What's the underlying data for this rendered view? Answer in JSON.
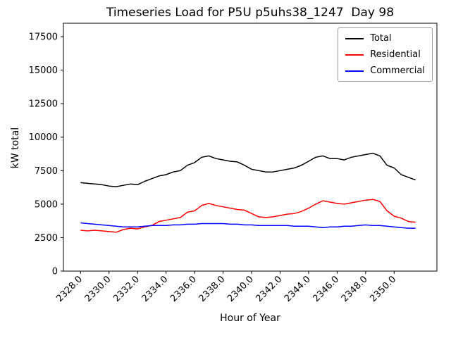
{
  "chart_data": {
    "type": "line",
    "title": "Timeseries Load for P5U p5uhs38_1247  Day 98",
    "xlabel": "Hour of Year",
    "ylabel": "kW total",
    "xlim": [
      2326.8,
      2353.0
    ],
    "ylim": [
      0,
      18500
    ],
    "grid": false,
    "legend_position": "upper right",
    "xticks": [
      2328,
      2330,
      2332,
      2334,
      2336,
      2338,
      2340,
      2342,
      2344,
      2346,
      2348,
      2350
    ],
    "xtick_labels": [
      "2328.0",
      "2330.0",
      "2332.0",
      "2334.0",
      "2336.0",
      "2338.0",
      "2340.0",
      "2342.0",
      "2344.0",
      "2346.0",
      "2348.0",
      "2350.0"
    ],
    "yticks": [
      0,
      2500,
      5000,
      7500,
      10000,
      12500,
      15000,
      17500
    ],
    "ytick_labels": [
      "0",
      "2500",
      "5000",
      "7500",
      "10000",
      "12500",
      "15000",
      "17500"
    ],
    "x": [
      2328.0,
      2328.5,
      2329.0,
      2329.5,
      2330.0,
      2330.5,
      2331.0,
      2331.5,
      2332.0,
      2332.5,
      2333.0,
      2333.5,
      2334.0,
      2334.5,
      2335.0,
      2335.5,
      2336.0,
      2336.5,
      2337.0,
      2337.5,
      2338.0,
      2338.5,
      2339.0,
      2339.5,
      2340.0,
      2340.5,
      2341.0,
      2341.5,
      2342.0,
      2342.5,
      2343.0,
      2343.5,
      2344.0,
      2344.5,
      2345.0,
      2345.5,
      2346.0,
      2346.5,
      2347.0,
      2347.5,
      2348.0,
      2348.5,
      2349.0,
      2349.5,
      2350.0,
      2350.5,
      2351.0,
      2351.5
    ],
    "series": [
      {
        "name": "Total",
        "color": "#000000",
        "values": [
          6600,
          6550,
          6500,
          6450,
          6350,
          6300,
          6400,
          6500,
          6450,
          6700,
          6900,
          7100,
          7200,
          7400,
          7500,
          7900,
          8100,
          8500,
          8600,
          8400,
          8300,
          8200,
          8150,
          7900,
          7600,
          7500,
          7400,
          7400,
          7500,
          7600,
          7700,
          7900,
          8200,
          8500,
          8600,
          8400,
          8400,
          8300,
          8500,
          8600,
          8700,
          8800,
          8600,
          7900,
          7700,
          7200,
          7000,
          6800
        ]
      },
      {
        "name": "Residential",
        "color": "#ff0000",
        "values": [
          3050,
          3000,
          3050,
          3000,
          2950,
          2900,
          3100,
          3200,
          3150,
          3300,
          3400,
          3700,
          3800,
          3900,
          4000,
          4400,
          4500,
          4900,
          5050,
          4900,
          4800,
          4700,
          4600,
          4550,
          4300,
          4050,
          4000,
          4050,
          4150,
          4250,
          4300,
          4450,
          4700,
          5000,
          5250,
          5150,
          5050,
          5000,
          5100,
          5200,
          5300,
          5350,
          5200,
          4500,
          4100,
          3950,
          3700,
          3650
        ]
      },
      {
        "name": "Commercial",
        "color": "#0000ff",
        "values": [
          3600,
          3550,
          3500,
          3450,
          3400,
          3350,
          3300,
          3300,
          3300,
          3350,
          3400,
          3400,
          3400,
          3450,
          3450,
          3500,
          3500,
          3550,
          3550,
          3550,
          3550,
          3500,
          3500,
          3450,
          3450,
          3400,
          3400,
          3400,
          3400,
          3400,
          3350,
          3350,
          3350,
          3300,
          3250,
          3300,
          3300,
          3350,
          3350,
          3400,
          3450,
          3400,
          3400,
          3350,
          3300,
          3250,
          3200,
          3200
        ]
      }
    ]
  }
}
